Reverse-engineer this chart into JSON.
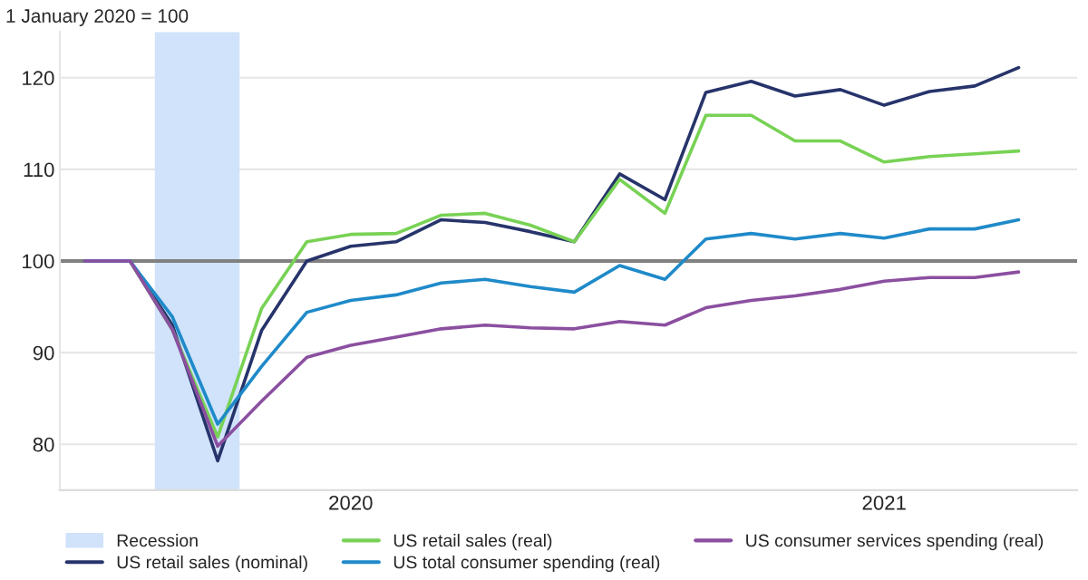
{
  "chart_data": {
    "type": "line",
    "title": "1 January 2020 = 100",
    "x": [
      "2020-01",
      "2020-02",
      "2020-03",
      "2020-04",
      "2020-05",
      "2020-06",
      "2020-07",
      "2020-08",
      "2020-09",
      "2020-10",
      "2020-11",
      "2020-12",
      "2021-01",
      "2021-02",
      "2021-03",
      "2021-04",
      "2021-05",
      "2021-06",
      "2021-07",
      "2021-08",
      "2021-09",
      "2021-10"
    ],
    "series": [
      {
        "name": "US retail sales (nominal)",
        "color": "#27346b",
        "values": [
          100,
          100,
          93,
          78.2,
          92.4,
          100,
          101.6,
          102.1,
          104.5,
          104.2,
          103.2,
          102.1,
          109.5,
          106.7,
          118.4,
          119.6,
          118.0,
          118.7,
          117.0,
          118.5,
          119.1,
          121.1
        ]
      },
      {
        "name": "US retail sales (real)",
        "color": "#78d255",
        "values": [
          100,
          100,
          92.5,
          80.8,
          94.8,
          102.1,
          102.9,
          103.0,
          105.0,
          105.2,
          103.9,
          102.1,
          108.9,
          105.2,
          115.9,
          115.9,
          113.1,
          113.1,
          110.8,
          111.4,
          111.7,
          112.0
        ]
      },
      {
        "name": "US total consumer spending (real)",
        "color": "#1f8ac9",
        "values": [
          100,
          100,
          93.9,
          82.2,
          88.5,
          94.4,
          95.7,
          96.3,
          97.6,
          98.0,
          97.2,
          96.6,
          99.5,
          98.0,
          102.4,
          103.0,
          102.4,
          103.0,
          102.5,
          103.5,
          103.5,
          104.5
        ]
      },
      {
        "name": "US consumer services spending (real)",
        "color": "#8b4fa0",
        "values": [
          100,
          100,
          92.5,
          79.8,
          84.7,
          89.5,
          90.8,
          91.7,
          92.6,
          93.0,
          92.7,
          92.6,
          93.4,
          93.0,
          94.9,
          95.7,
          96.2,
          96.9,
          97.8,
          98.2,
          98.2,
          98.8
        ]
      }
    ],
    "xlim": [
      "2019-12-15",
      "2021-11-10"
    ],
    "xticks": [
      {
        "value": "2020-07-01",
        "label": "2020"
      },
      {
        "value": "2021-07-01",
        "label": "2021"
      }
    ],
    "ylim": [
      75,
      125
    ],
    "yticks": [
      80,
      90,
      100,
      110,
      120
    ],
    "bands": [
      {
        "axis": "x",
        "from": "2020-02-18",
        "to": "2020-04-16",
        "label": "Recession",
        "color": "#d0e3fa"
      }
    ],
    "ref_lines": [
      {
        "axis": "y",
        "value": 100,
        "color": "#808080"
      }
    ],
    "grid": "y",
    "legend": "bottom",
    "line_style": "solid",
    "marker": "none"
  }
}
